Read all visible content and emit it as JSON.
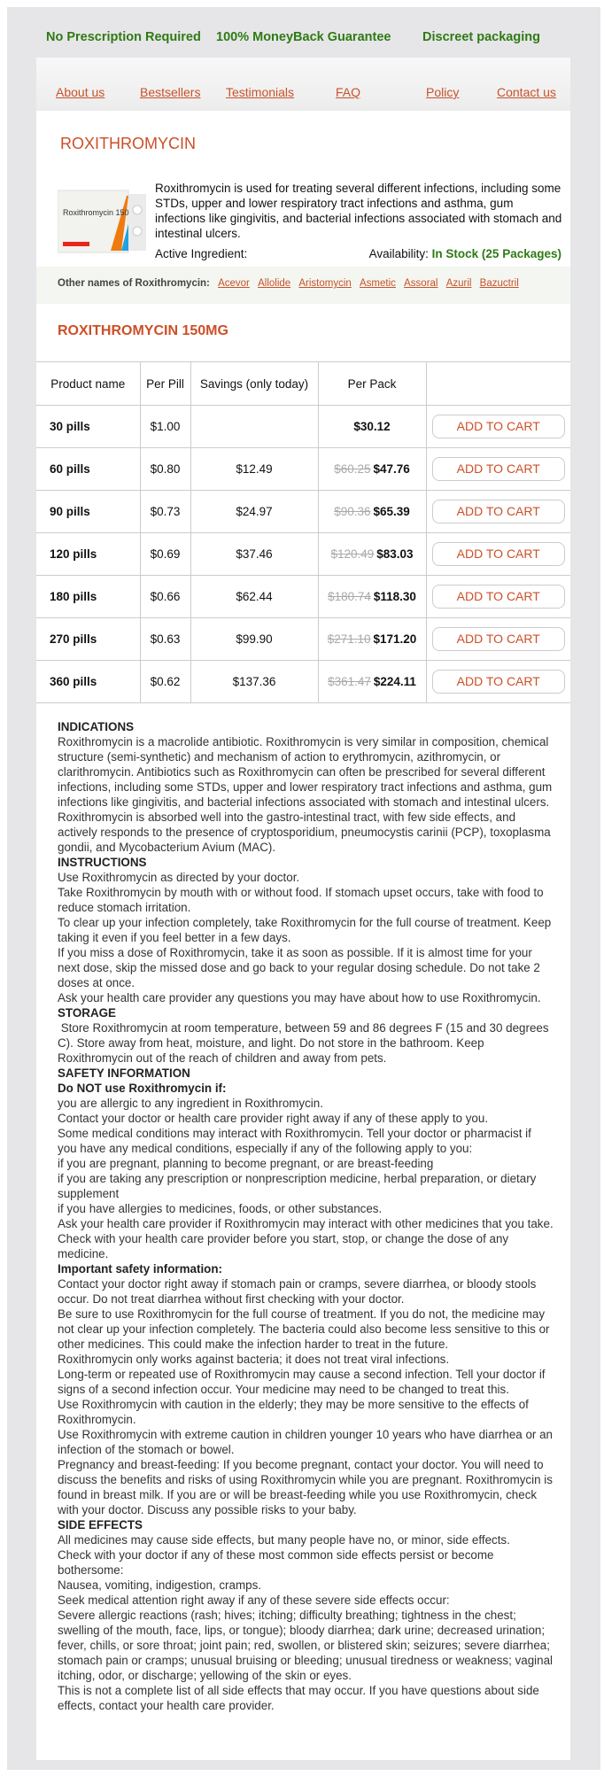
{
  "promo": [
    "No Prescription Required",
    "100% MoneyBack Guarantee",
    "Discreet packaging"
  ],
  "nav": [
    "About us",
    "Bestsellers",
    "Testimonials",
    "FAQ",
    "Policy",
    "Contact us"
  ],
  "product": {
    "title": "ROXITHROMYCIN",
    "image_label": "Roxithromycin 150",
    "description": "Roxithromycin is used for treating several different infections, including some STDs, upper and lower respiratory tract infections and asthma, gum infections like gingivitis, and bacterial infections associated with stomach and intestinal ulcers.",
    "active_ingredient_label": "Active Ingredient:",
    "availability_label": "Availability:",
    "availability_value": "In Stock (25 Packages)",
    "other_names_label": "Other names of Roxithromycin:",
    "other_names": [
      "Acevor",
      "Allolide",
      "Aristomycin",
      "Asmetic",
      "Assoral",
      "Azuril",
      "Bazuctril"
    ]
  },
  "pricing": {
    "title": "ROXITHROMYCIN 150MG",
    "headers": [
      "Product name",
      "Per Pill",
      "Savings (only today)",
      "Per Pack",
      ""
    ],
    "button_label": "ADD TO CART",
    "rows": [
      {
        "name": "30 pills",
        "per_pill": "$1.00",
        "savings": "",
        "old": "",
        "price": "$30.12"
      },
      {
        "name": "60 pills",
        "per_pill": "$0.80",
        "savings": "$12.49",
        "old": "$60.25",
        "price": "$47.76"
      },
      {
        "name": "90 pills",
        "per_pill": "$0.73",
        "savings": "$24.97",
        "old": "$90.36",
        "price": "$65.39"
      },
      {
        "name": "120 pills",
        "per_pill": "$0.69",
        "savings": "$37.46",
        "old": "$120.49",
        "price": "$83.03"
      },
      {
        "name": "180 pills",
        "per_pill": "$0.66",
        "savings": "$62.44",
        "old": "$180.74",
        "price": "$118.30"
      },
      {
        "name": "270 pills",
        "per_pill": "$0.63",
        "savings": "$99.90",
        "old": "$271.10",
        "price": "$171.20"
      },
      {
        "name": "360 pills",
        "per_pill": "$0.62",
        "savings": "$137.36",
        "old": "$361.47",
        "price": "$224.11"
      }
    ]
  },
  "info": [
    {
      "h": true,
      "t": "INDICATIONS"
    },
    {
      "t": "Roxithromycin is a macrolide antibiotic. Roxithromycin is very similar in composition, chemical structure (semi-synthetic) and mechanism of action to erythromycin, azithromycin, or clarithromycin. Antibiotics such as Roxithromycin can often be prescribed for several different infections, including some STDs, upper and lower respiratory tract infections and asthma, gum infections like gingivitis, and bacterial infections associated with stomach and intestinal ulcers. Roxithromycin is absorbed well into the gastro-intestinal tract, with few side effects, and actively responds to the presence of cryptosporidium, pneumocystis carinii (PCP), toxoplasma gondii, and Mycobacterium Avium (MAC)."
    },
    {
      "h": true,
      "t": "INSTRUCTIONS"
    },
    {
      "t": "Use Roxithromycin as directed by your doctor."
    },
    {
      "t": "Take Roxithromycin by mouth with or without food. If stomach upset occurs, take with food to reduce stomach irritation."
    },
    {
      "t": "To clear up your infection completely, take Roxithromycin for the full course of treatment. Keep taking it even if you feel better in a few days."
    },
    {
      "t": "If you miss a dose of Roxithromycin, take it as soon as possible. If it is almost time for your next dose, skip the missed dose and go back to your regular dosing schedule. Do not take 2 doses at once."
    },
    {
      "t": "Ask your health care provider any questions you may have about how to use Roxithromycin."
    },
    {
      "h": true,
      "t": "STORAGE"
    },
    {
      "t": " Store Roxithromycin at room temperature, between 59 and 86 degrees F (15 and 30 degrees C). Store away from heat, moisture, and light. Do not store in the bathroom. Keep Roxithromycin out of the reach of children and away from pets."
    },
    {
      "h": true,
      "t": "SAFETY INFORMATION"
    },
    {
      "h": true,
      "t": "Do NOT use Roxithromycin if:"
    },
    {
      "t": "you are allergic to any ingredient in Roxithromycin."
    },
    {
      "t": "Contact your doctor or health care provider right away if any of these apply to you."
    },
    {
      "t": "Some medical conditions may interact with Roxithromycin. Tell your doctor or pharmacist if you have any medical conditions, especially if any of the following apply to you:"
    },
    {
      "t": "if you are pregnant, planning to become pregnant, or are breast-feeding"
    },
    {
      "t": "if you are taking any prescription or nonprescription medicine, herbal preparation, or dietary supplement"
    },
    {
      "t": "if you have allergies to medicines, foods, or other substances."
    },
    {
      "t": "Ask your health care provider if Roxithromycin may interact with other medicines that you take. Check with your health care provider before you start, stop, or change the dose of any medicine."
    },
    {
      "h": true,
      "t": "Important safety information:"
    },
    {
      "t": "Contact your doctor right away if stomach pain or cramps, severe diarrhea, or bloody stools occur. Do not treat diarrhea without first checking with your doctor."
    },
    {
      "t": "Be sure to use Roxithromycin for the full course of treatment. If you do not, the medicine may not clear up your infection completely. The bacteria could also become less sensitive to this or other medicines. This could make the infection harder to treat in the future."
    },
    {
      "t": "Roxithromycin only works against bacteria; it does not treat viral infections."
    },
    {
      "t": "Long-term or repeated use of Roxithromycin may cause a second infection. Tell your doctor if signs of a second infection occur. Your medicine may need to be changed to treat this."
    },
    {
      "t": "Use Roxithromycin with caution in the elderly; they may be more sensitive to the effects of Roxithromycin."
    },
    {
      "t": "Use Roxithromycin with extreme caution in children younger 10 years who have diarrhea or an infection of the stomach or bowel."
    },
    {
      "t": "Pregnancy and breast-feeding: If you become pregnant, contact your doctor. You will need to discuss the benefits and risks of using Roxithromycin while you are pregnant. Roxithromycin is found in breast milk. If you are or will be breast-feeding while you use Roxithromycin, check with your doctor. Discuss any possible risks to your baby."
    },
    {
      "h": true,
      "t": "SIDE EFFECTS"
    },
    {
      "t": "All medicines may cause side effects, but many people have no, or minor, side effects."
    },
    {
      "t": "Check with your doctor if any of these most common side effects persist or become bothersome:"
    },
    {
      "t": "Nausea, vomiting, indigestion, cramps."
    },
    {
      "t": "Seek medical attention right away if any of these severe side effects occur:"
    },
    {
      "t": "Severe allergic reactions (rash; hives; itching; difficulty breathing; tightness in the chest; swelling of the mouth, face, lips, or tongue); bloody diarrhea; dark urine; decreased urination; fever, chills, or sore throat; joint pain; red, swollen, or blistered skin; seizures; severe diarrhea; stomach pain or cramps; unusual bruising or bleeding; unusual tiredness or weakness; vaginal itching, odor, or discharge; yellowing of the skin or eyes."
    },
    {
      "t": "This is not a complete list of all side effects that may occur. If you have questions about side effects, contact your health care provider."
    }
  ]
}
